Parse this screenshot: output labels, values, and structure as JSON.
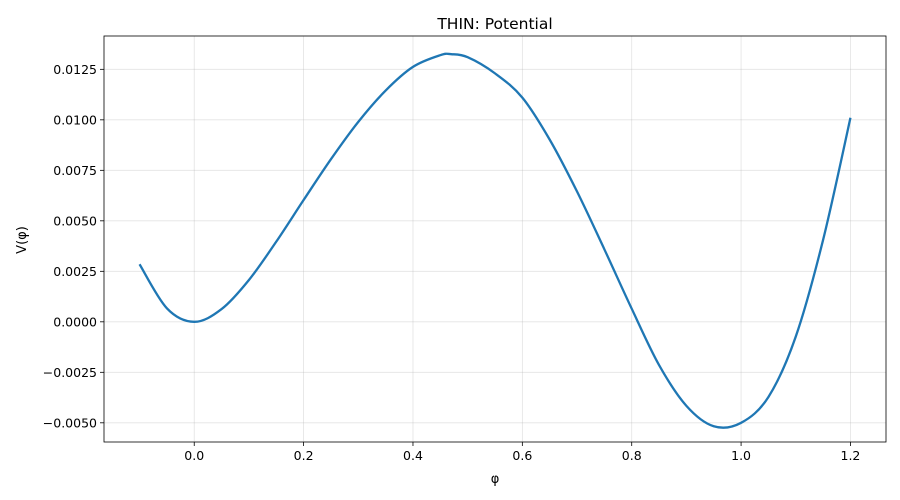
{
  "chart_data": {
    "type": "line",
    "title": "THIN: Potential",
    "xlabel": "φ",
    "ylabel": "V(φ)",
    "xlim": [
      -0.165,
      1.265
    ],
    "ylim": [
      -0.00595,
      0.01415
    ],
    "xticks": [
      0.0,
      0.2,
      0.4,
      0.6,
      0.8,
      1.0,
      1.2
    ],
    "xtick_labels": [
      "0.0",
      "0.2",
      "0.4",
      "0.6",
      "0.8",
      "1.0",
      "1.2"
    ],
    "yticks": [
      -0.005,
      -0.0025,
      0.0,
      0.0025,
      0.005,
      0.0075,
      0.01,
      0.0125
    ],
    "ytick_labels": [
      "−0.0050",
      "−0.0025",
      "0.0000",
      "0.0025",
      "0.0050",
      "0.0075",
      "0.0100",
      "0.0125"
    ],
    "grid": true,
    "series": [
      {
        "color": "#1f77b4",
        "x": [
          -0.1,
          -0.05,
          0.0,
          0.05,
          0.1,
          0.15,
          0.2,
          0.25,
          0.3,
          0.35,
          0.4,
          0.45,
          0.47,
          0.5,
          0.55,
          0.6,
          0.65,
          0.7,
          0.75,
          0.8,
          0.85,
          0.9,
          0.95,
          1.0,
          1.05,
          1.1,
          1.15,
          1.2
        ],
        "y": [
          0.00285,
          0.00067,
          0.0,
          0.00063,
          0.00207,
          0.00397,
          0.00603,
          0.00805,
          0.0099,
          0.01145,
          0.01262,
          0.0132,
          0.01325,
          0.0131,
          0.0123,
          0.0111,
          0.00902,
          0.00645,
          0.00359,
          0.00065,
          -0.00214,
          -0.00416,
          -0.00517,
          -0.005,
          -0.00372,
          -0.00073,
          0.00406,
          0.0101
        ]
      }
    ]
  }
}
